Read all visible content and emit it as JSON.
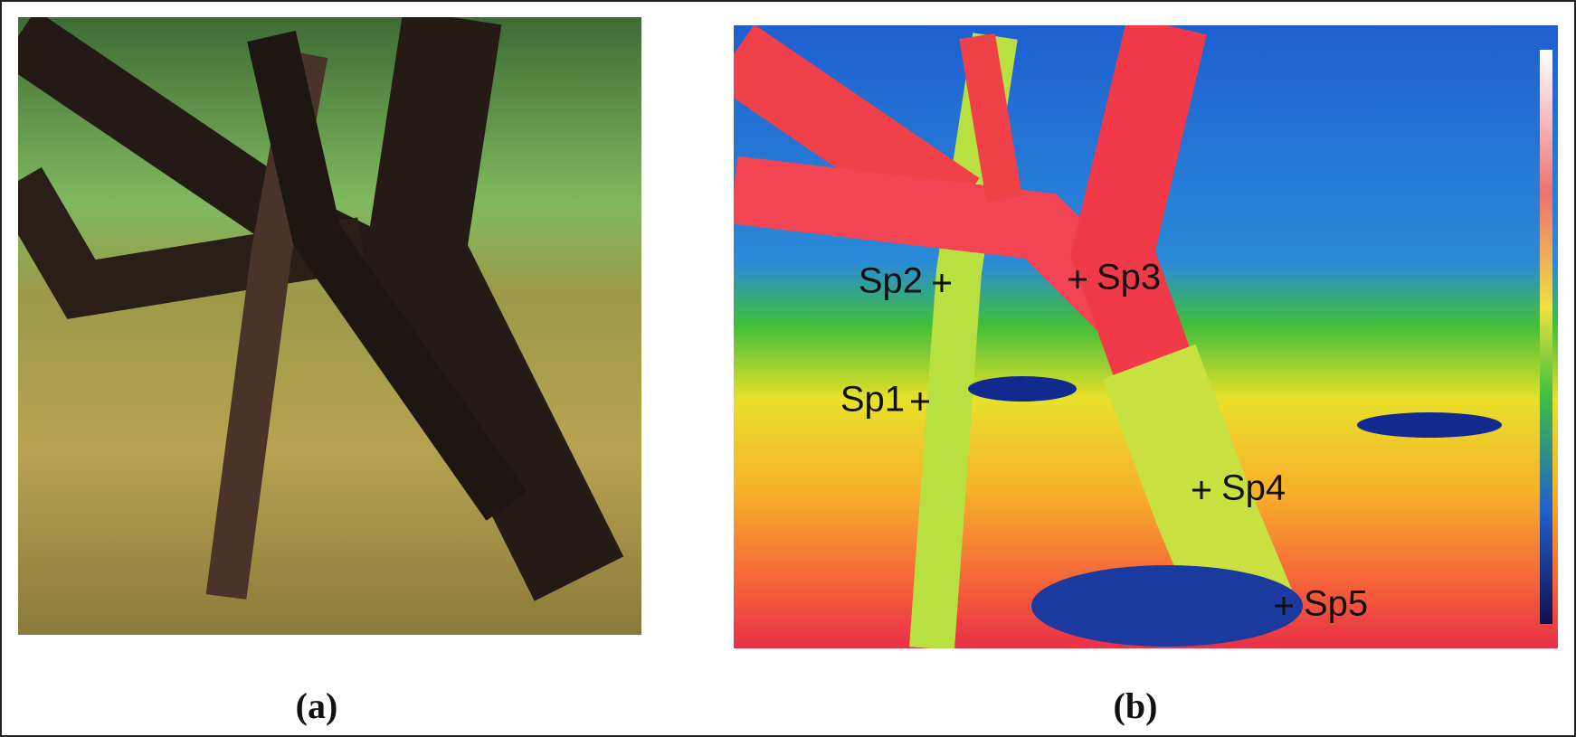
{
  "panels": [
    {
      "label": "(a)"
    },
    {
      "label": "(b)",
      "spots": [
        "Sp1",
        "Sp2",
        "Sp3",
        "Sp4",
        "Sp5"
      ]
    }
  ]
}
